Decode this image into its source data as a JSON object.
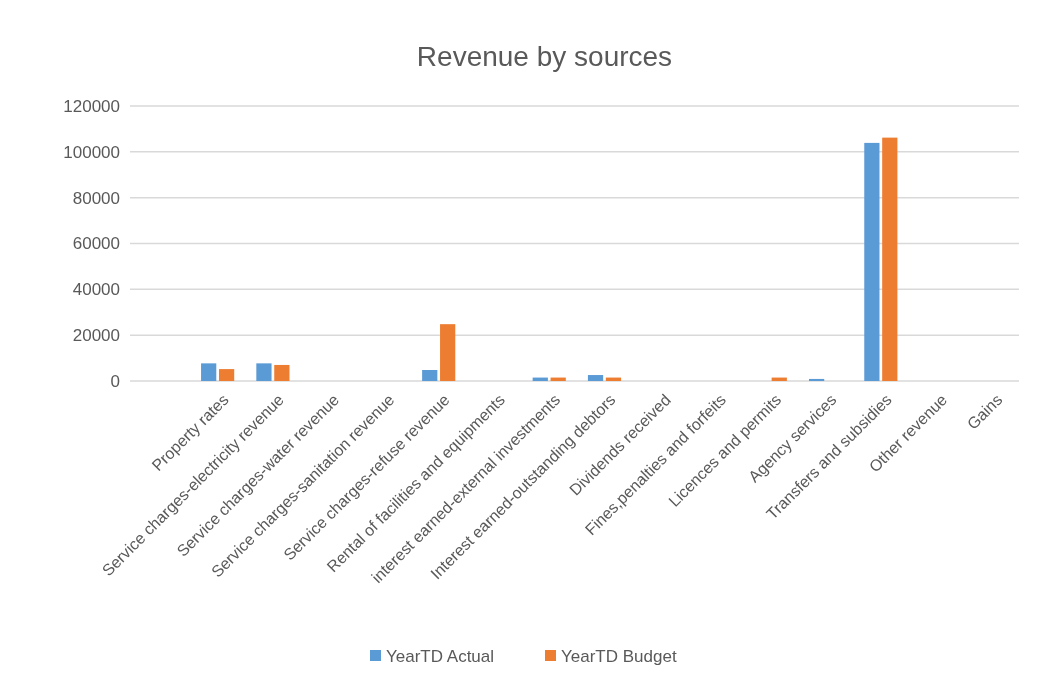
{
  "chart_data": {
    "type": "bar",
    "title": "Revenue by sources",
    "categories": [
      "Property rates",
      "Service charges-electricity revenue",
      "Service charges-water revenue",
      "Service charges-sanitation revenue",
      "Service charges-refuse revenue",
      "Rental of facilities and equipments",
      "interest earned-external investments",
      "Interest earned-outstanding debtors",
      "Dividends received",
      "Fines,penalties and forfeits",
      "Licences and permits",
      "Agency services",
      "Transfers and subsidies",
      "Other revenue",
      "Gains"
    ],
    "series": [
      {
        "name": "YearTD Actual",
        "color": "#5b9bd5",
        "values": [
          7700,
          7700,
          0,
          0,
          4800,
          0,
          1500,
          2600,
          0,
          0,
          0,
          900,
          103900,
          0,
          0
        ]
      },
      {
        "name": "YearTD Budget",
        "color": "#ed7d31",
        "values": [
          5200,
          7000,
          0,
          0,
          24800,
          0,
          1500,
          1500,
          0,
          0,
          1500,
          0,
          106200,
          0,
          0
        ]
      }
    ],
    "ylim": [
      0,
      120000
    ],
    "yticks": [
      0,
      20000,
      40000,
      60000,
      80000,
      100000,
      120000
    ],
    "grid": "y",
    "legend": "bottom"
  }
}
